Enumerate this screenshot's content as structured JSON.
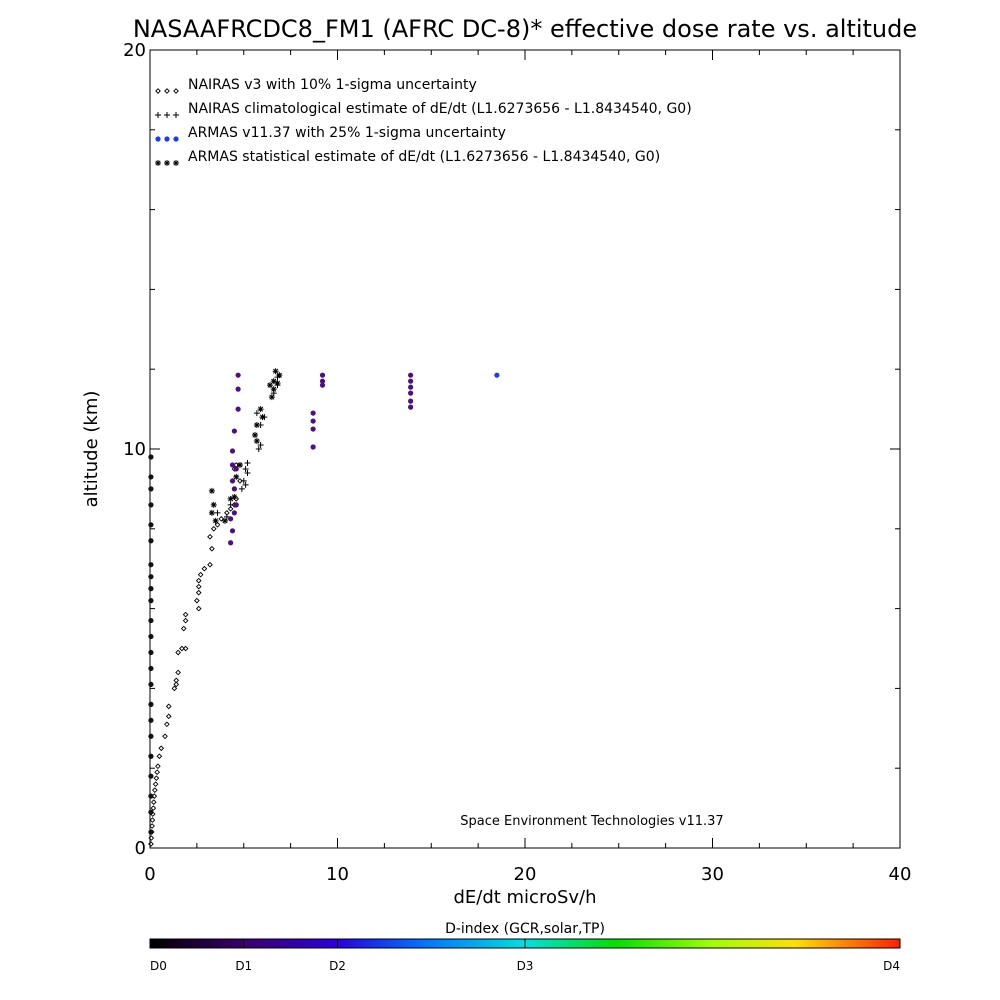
{
  "chart_data": {
    "type": "scatter",
    "title": "NASAAFRCDC8_FM1 (AFRC DC-8)* effective dose rate vs. altitude",
    "xlabel": "dE/dt microSv/h",
    "ylabel": "altitude (km)",
    "xlim": [
      0,
      40
    ],
    "ylim": [
      0,
      20
    ],
    "x_ticks": [
      "0",
      "10",
      "20",
      "30",
      "40"
    ],
    "y_ticks": [
      "0",
      "10",
      "20"
    ],
    "grid": false,
    "legend_position": "top-left",
    "annotation": "Space Environment Technologies v11.37",
    "series": [
      {
        "name": "NAIRAS v3 with 10% 1-sigma uncertainty",
        "marker": "diamond",
        "color": "#000000",
        "points": [
          [
            0.05,
            0.1
          ],
          [
            0.07,
            0.25
          ],
          [
            0.09,
            0.4
          ],
          [
            0.11,
            0.55
          ],
          [
            0.13,
            0.7
          ],
          [
            0.15,
            0.85
          ],
          [
            0.18,
            1.0
          ],
          [
            0.2,
            1.15
          ],
          [
            0.23,
            1.3
          ],
          [
            0.26,
            1.45
          ],
          [
            0.3,
            1.6
          ],
          [
            0.34,
            1.75
          ],
          [
            0.38,
            1.9
          ],
          [
            0.42,
            2.05
          ],
          [
            0.5,
            2.3
          ],
          [
            0.6,
            2.5
          ],
          [
            0.8,
            2.8
          ],
          [
            0.9,
            3.1
          ],
          [
            1.0,
            3.3
          ],
          [
            1.0,
            3.55
          ],
          [
            1.3,
            4.0
          ],
          [
            1.4,
            4.1
          ],
          [
            1.4,
            4.2
          ],
          [
            1.5,
            4.4
          ],
          [
            1.5,
            4.9
          ],
          [
            1.7,
            5.0
          ],
          [
            1.9,
            5.0
          ],
          [
            1.8,
            5.5
          ],
          [
            1.9,
            5.7
          ],
          [
            1.9,
            5.85
          ],
          [
            2.6,
            6.0
          ],
          [
            2.5,
            6.2
          ],
          [
            2.6,
            6.4
          ],
          [
            2.6,
            6.55
          ],
          [
            2.6,
            6.7
          ],
          [
            2.7,
            6.85
          ],
          [
            2.9,
            7.0
          ],
          [
            3.2,
            7.1
          ],
          [
            3.3,
            7.5
          ],
          [
            3.2,
            7.8
          ],
          [
            3.4,
            8.0
          ],
          [
            3.6,
            8.1
          ],
          [
            3.8,
            8.25
          ],
          [
            4.1,
            8.4
          ],
          [
            4.3,
            8.5
          ],
          [
            4.5,
            8.6
          ],
          [
            4.6,
            8.75
          ],
          [
            4.4,
            9.2
          ],
          [
            4.5,
            9.5
          ],
          [
            4.6,
            9.6
          ],
          [
            4.8,
            9.2
          ]
        ]
      },
      {
        "name": "NAIRAS climatological estimate of dE/dt (L1.6273656 - L1.8434540, G0)",
        "marker": "plus",
        "color": "#000000",
        "points": [
          [
            3.6,
            8.4
          ],
          [
            4.1,
            8.3
          ],
          [
            4.3,
            8.6
          ],
          [
            4.9,
            9.0
          ],
          [
            5.0,
            9.2
          ],
          [
            5.1,
            9.5
          ],
          [
            5.2,
            9.65
          ],
          [
            5.1,
            9.1
          ],
          [
            5.2,
            9.4
          ],
          [
            5.8,
            10.0
          ],
          [
            5.9,
            10.1
          ],
          [
            5.9,
            10.6
          ],
          [
            6.1,
            10.8
          ],
          [
            5.7,
            10.9
          ],
          [
            6.6,
            11.4
          ],
          [
            6.8,
            11.6
          ],
          [
            6.8,
            11.8
          ]
        ]
      },
      {
        "name": "ARMAS v11.37 with 25% 1-sigma uncertainty",
        "marker": "dot",
        "points": [
          [
            4.3,
            7.65
          ],
          [
            4.4,
            7.95
          ],
          [
            4.3,
            8.25
          ],
          [
            4.5,
            8.4
          ],
          [
            4.6,
            8.6
          ],
          [
            4.5,
            9.0
          ],
          [
            4.4,
            9.2
          ],
          [
            4.6,
            9.5
          ],
          [
            4.4,
            9.6
          ],
          [
            4.4,
            9.95
          ],
          [
            4.5,
            10.45
          ],
          [
            4.7,
            11.0
          ],
          [
            4.7,
            11.5
          ],
          [
            4.7,
            11.85
          ],
          [
            8.7,
            10.05
          ],
          [
            8.7,
            10.5
          ],
          [
            8.7,
            10.7
          ],
          [
            8.7,
            10.9
          ],
          [
            9.2,
            11.6
          ],
          [
            9.2,
            11.7
          ],
          [
            9.2,
            11.85
          ],
          [
            13.9,
            11.05
          ],
          [
            13.9,
            11.2
          ],
          [
            13.9,
            11.4
          ],
          [
            13.9,
            11.55
          ],
          [
            13.9,
            11.7
          ],
          [
            13.9,
            11.85
          ],
          [
            18.5,
            11.85
          ],
          [
            0.05,
            0.4
          ],
          [
            0.05,
            0.9
          ],
          [
            0.05,
            1.3
          ],
          [
            0.05,
            1.8
          ],
          [
            0.05,
            2.3
          ],
          [
            0.05,
            2.8
          ],
          [
            0.05,
            3.2
          ],
          [
            0.05,
            3.6
          ],
          [
            0.05,
            4.1
          ],
          [
            0.05,
            4.5
          ],
          [
            0.05,
            4.9
          ],
          [
            0.05,
            5.3
          ],
          [
            0.05,
            5.7
          ],
          [
            0.05,
            6.2
          ],
          [
            0.05,
            6.5
          ],
          [
            0.05,
            6.8
          ],
          [
            0.05,
            7.1
          ],
          [
            0.05,
            7.7
          ],
          [
            0.05,
            8.1
          ],
          [
            0.05,
            8.6
          ],
          [
            0.05,
            9.0
          ],
          [
            0.05,
            9.3
          ],
          [
            0.05,
            9.8
          ]
        ]
      },
      {
        "name": "ARMAS statistical estimate of dE/dt (L1.6273656 - L1.8434540, G0)",
        "marker": "asterisk",
        "color": "#000000",
        "points": [
          [
            3.3,
            8.4
          ],
          [
            3.4,
            8.6
          ],
          [
            3.3,
            8.95
          ],
          [
            3.5,
            8.2
          ],
          [
            4.0,
            8.2
          ],
          [
            4.3,
            8.75
          ],
          [
            4.5,
            8.8
          ],
          [
            4.8,
            9.6
          ],
          [
            4.6,
            9.3
          ],
          [
            5.7,
            10.2
          ],
          [
            5.6,
            10.35
          ],
          [
            5.7,
            10.6
          ],
          [
            6.0,
            10.8
          ],
          [
            5.9,
            11.0
          ],
          [
            6.5,
            11.3
          ],
          [
            6.6,
            11.5
          ],
          [
            6.6,
            11.7
          ],
          [
            6.8,
            11.65
          ],
          [
            6.9,
            11.85
          ],
          [
            6.4,
            11.6
          ],
          [
            6.7,
            11.95
          ]
        ]
      }
    ],
    "colorbar": {
      "title": "D-index (GCR,solar,TP)",
      "labels": [
        "D0",
        "D1",
        "D2",
        "D3",
        "D4"
      ]
    }
  }
}
